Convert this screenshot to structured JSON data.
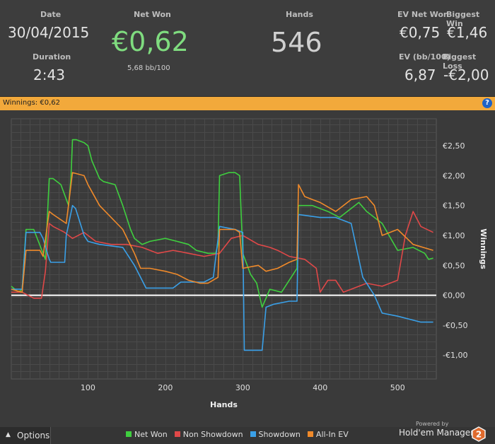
{
  "stats": {
    "date_label": "Date",
    "date_value": "30/04/2015",
    "duration_label": "Duration",
    "duration_value": "2:43",
    "netwon_label": "Net Won",
    "netwon_value": "€0,62",
    "netwon_sub": "5,68 bb/100",
    "hands_label": "Hands",
    "hands_value": "546",
    "evnet_label": "EV Net Won",
    "evnet_value": "€0,75",
    "bigwin_label": "Biggest Win",
    "bigwin_value": "€1,46",
    "evbb_label": "EV (bb/100)",
    "evbb_value": "6,87",
    "bigloss_label": "Biggest Loss",
    "bigloss_value": "-€2,00"
  },
  "bar": {
    "text": "Winnings: €0,62",
    "help": "?"
  },
  "footer": {
    "options_label": "Options",
    "options_icon": "triangle-up-icon",
    "powered_by": "Powered by",
    "brand": "Hold'em Manager",
    "brand_badge": "2"
  },
  "colors": {
    "stats_bg": "#3d3d3d",
    "plot_bg": "#3b3b3b",
    "bar_bg": "#f2a93b",
    "net_won_value": "#7fdc7f",
    "zero_line": "#ffffff",
    "brand_badge": "#e06a2c"
  },
  "chart_data": {
    "type": "line",
    "title": "",
    "xlabel": "Hands",
    "ylabel": "Winnings",
    "xlim": [
      1,
      550
    ],
    "ylim": [
      -1.4,
      2.95
    ],
    "x_ticks": [
      100,
      200,
      300,
      400,
      500
    ],
    "y_ticks": [
      -1.0,
      -0.5,
      0.0,
      0.5,
      1.0,
      1.5,
      2.0,
      2.5
    ],
    "y_tick_labels": [
      "-€1,00",
      "-€0,50",
      "€0,00",
      "€0,50",
      "€1,00",
      "€1,50",
      "€2,00",
      "€2,50"
    ],
    "grid": true,
    "zero_line": true,
    "legend": "bottom",
    "series": [
      {
        "name": "Net Won",
        "color": "#3fcf3f",
        "x": [
          1,
          10,
          15,
          20,
          30,
          45,
          50,
          55,
          65,
          75,
          78,
          80,
          85,
          95,
          100,
          105,
          115,
          120,
          135,
          145,
          155,
          160,
          170,
          180,
          200,
          215,
          230,
          240,
          255,
          265,
          268,
          270,
          282,
          290,
          296,
          300,
          310,
          318,
          325,
          335,
          350,
          370,
          372,
          390,
          410,
          425,
          450,
          460,
          480,
          500,
          520,
          535,
          540,
          546
        ],
        "y": [
          0.15,
          0.05,
          0.1,
          1.1,
          1.1,
          0.6,
          1.95,
          1.95,
          1.85,
          1.5,
          1.95,
          2.6,
          2.6,
          2.55,
          2.5,
          2.25,
          1.95,
          1.9,
          1.85,
          1.5,
          1.1,
          0.95,
          0.85,
          0.9,
          0.95,
          0.9,
          0.85,
          0.75,
          0.7,
          0.7,
          0.85,
          2.0,
          2.05,
          2.05,
          2.0,
          0.7,
          0.35,
          0.2,
          -0.2,
          0.1,
          0.05,
          0.45,
          1.5,
          1.5,
          1.4,
          1.3,
          1.55,
          1.4,
          1.2,
          0.75,
          0.8,
          0.7,
          0.6,
          0.62
        ]
      },
      {
        "name": "Non Showdown",
        "color": "#e04848",
        "x": [
          1,
          15,
          30,
          40,
          45,
          50,
          55,
          70,
          80,
          95,
          110,
          130,
          150,
          170,
          190,
          210,
          230,
          250,
          270,
          285,
          300,
          320,
          335,
          345,
          360,
          380,
          395,
          400,
          410,
          420,
          430,
          440,
          450,
          460,
          480,
          500,
          510,
          520,
          530,
          546
        ],
        "y": [
          0.05,
          0.05,
          -0.05,
          -0.05,
          0.4,
          1.2,
          1.15,
          1.05,
          0.95,
          1.05,
          0.9,
          0.85,
          0.85,
          0.8,
          0.7,
          0.75,
          0.7,
          0.65,
          0.7,
          0.95,
          1.0,
          0.85,
          0.8,
          0.75,
          0.65,
          0.6,
          0.45,
          0.05,
          0.25,
          0.25,
          0.05,
          0.1,
          0.15,
          0.2,
          0.15,
          0.25,
          1.0,
          1.4,
          1.15,
          1.05
        ]
      },
      {
        "name": "Showdown",
        "color": "#3aa0e8",
        "x": [
          1,
          15,
          20,
          38,
          42,
          50,
          52,
          68,
          70,
          72,
          80,
          84,
          95,
          100,
          115,
          145,
          150,
          160,
          168,
          175,
          180,
          210,
          220,
          250,
          262,
          270,
          290,
          300,
          302,
          325,
          330,
          340,
          360,
          370,
          372,
          400,
          420,
          440,
          455,
          470,
          480,
          500,
          530,
          546
        ],
        "y": [
          0.1,
          0.1,
          1.05,
          1.05,
          0.95,
          0.6,
          0.55,
          0.55,
          0.55,
          1.0,
          1.5,
          1.45,
          1.0,
          0.9,
          0.85,
          0.8,
          0.7,
          0.5,
          0.3,
          0.12,
          0.12,
          0.12,
          0.22,
          0.22,
          0.3,
          1.15,
          1.1,
          1.05,
          -0.92,
          -0.92,
          -0.2,
          -0.15,
          -0.1,
          -0.1,
          1.35,
          1.3,
          1.3,
          1.2,
          0.3,
          0.0,
          -0.3,
          -0.35,
          -0.45,
          -0.45
        ]
      },
      {
        "name": "All-In EV",
        "color": "#f08a2a",
        "x": [
          1,
          15,
          20,
          38,
          42,
          50,
          55,
          72,
          80,
          95,
          100,
          115,
          145,
          160,
          168,
          180,
          200,
          215,
          230,
          245,
          255,
          268,
          270,
          290,
          296,
          300,
          320,
          330,
          345,
          360,
          370,
          372,
          380,
          390,
          400,
          420,
          430,
          440,
          460,
          470,
          480,
          500,
          520,
          546
        ],
        "y": [
          0.1,
          0.05,
          0.75,
          0.75,
          0.65,
          1.4,
          1.35,
          1.2,
          2.05,
          2.0,
          1.85,
          1.5,
          1.1,
          0.7,
          0.45,
          0.45,
          0.4,
          0.35,
          0.25,
          0.2,
          0.2,
          0.3,
          1.1,
          1.1,
          1.05,
          0.45,
          0.5,
          0.4,
          0.45,
          0.55,
          0.6,
          1.85,
          1.65,
          1.6,
          1.55,
          1.4,
          1.5,
          1.6,
          1.65,
          1.5,
          1.0,
          1.1,
          0.85,
          0.75
        ]
      }
    ]
  }
}
